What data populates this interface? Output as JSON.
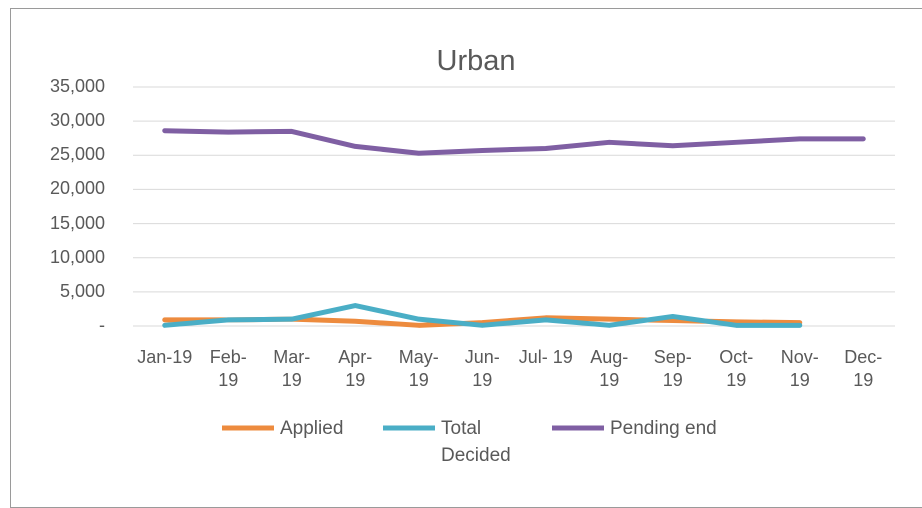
{
  "chart_data": {
    "type": "line",
    "title": "Urban",
    "categories": [
      "Jan-19",
      "Feb-19",
      "Mar-19",
      "Apr-19",
      "May-19",
      "Jun-19",
      "Jul- 19",
      "Aug-19",
      "Sep-19",
      "Oct-19",
      "Nov-19",
      "Dec-19"
    ],
    "series": [
      {
        "name": "Applied",
        "color": "#ed8b3e",
        "values": [
          900,
          900,
          1000,
          700,
          100,
          500,
          1200,
          1000,
          800,
          600,
          500,
          null
        ]
      },
      {
        "name": "Total Decided",
        "color": "#4aaec6",
        "values": [
          100,
          900,
          1000,
          3000,
          1000,
          100,
          900,
          100,
          1400,
          100,
          100,
          null
        ]
      },
      {
        "name": "Pending end",
        "color": "#7f5fa3",
        "values": [
          28600,
          28400,
          28500,
          26300,
          25300,
          25700,
          26000,
          26900,
          26400,
          26900,
          27400,
          27400
        ]
      }
    ],
    "ylim": [
      0,
      35000
    ],
    "yticks": [
      {
        "value": 0,
        "label": "-"
      },
      {
        "value": 5000,
        "label": "5,000"
      },
      {
        "value": 10000,
        "label": "10,000"
      },
      {
        "value": 15000,
        "label": "15,000"
      },
      {
        "value": 20000,
        "label": "20,000"
      },
      {
        "value": 25000,
        "label": "25,000"
      },
      {
        "value": 30000,
        "label": "30,000"
      },
      {
        "value": 35000,
        "label": "35,000"
      }
    ],
    "grid": true,
    "legend": "bottom"
  }
}
